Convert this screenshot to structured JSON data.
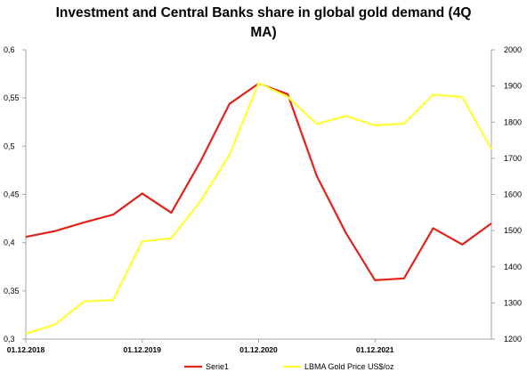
{
  "chart_data": {
    "type": "line",
    "title_line1": "Investment and Central Banks share in global gold demand (4Q",
    "title_line2": "MA)",
    "x_ticks": [
      "01.12.2018",
      "01.12.2019",
      "01.12.2020",
      "01.12.2021"
    ],
    "y_left": {
      "min": 0.3,
      "max": 0.6,
      "ticks": [
        "0,3",
        "0,35",
        "0,4",
        "0,45",
        "0,5",
        "0,55",
        "0,6"
      ]
    },
    "y_right": {
      "min": 1200,
      "max": 2000,
      "ticks": [
        "1200",
        "1300",
        "1400",
        "1500",
        "1600",
        "1700",
        "1800",
        "1900",
        "2000"
      ]
    },
    "legend_position": "bottom",
    "series": [
      {
        "name": "Serie1",
        "axis": "left",
        "color": "#e2231a",
        "values": [
          0.406,
          0.412,
          0.421,
          0.429,
          0.451,
          0.431,
          0.484,
          0.544,
          0.565,
          0.554,
          0.469,
          0.41,
          0.361,
          0.363,
          0.415,
          0.398,
          0.42
        ]
      },
      {
        "name": "LBMA Gold Price US$/oz",
        "axis": "right",
        "color": "#ffff33",
        "values": [
          1215,
          1240,
          1304,
          1308,
          1470,
          1479,
          1581,
          1710,
          1908,
          1870,
          1795,
          1817,
          1791,
          1796,
          1876,
          1870,
          1725
        ]
      }
    ]
  }
}
